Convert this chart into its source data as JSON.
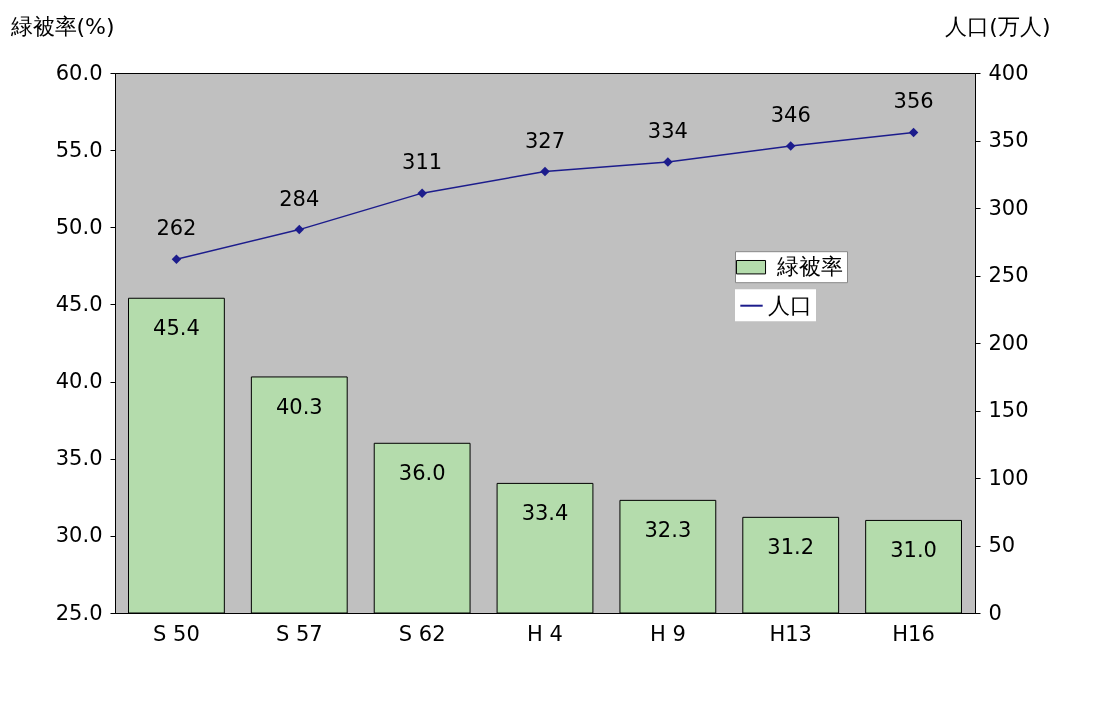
{
  "chart_data": {
    "type": "bar",
    "ylabel": "緑被率(%)",
    "y2label": "人口(万人)",
    "categories": [
      "S 50",
      "S 57",
      "S 62",
      "H 4",
      "H 9",
      "H13",
      "H16"
    ],
    "series": [
      {
        "name": "緑被率",
        "color": "#b4dcac",
        "values": [
          45.4,
          40.3,
          36.0,
          33.4,
          32.3,
          31.2,
          31.0
        ],
        "value_labels": [
          "45.4",
          "40.3",
          "36.0",
          "33.4",
          "32.3",
          "31.2",
          "31.0"
        ]
      },
      {
        "name": "人口",
        "type": "line",
        "axis": "y2",
        "color": "#1c1c8c",
        "marker": "diamond",
        "values": [
          262,
          284,
          311,
          327,
          334,
          346,
          356
        ],
        "value_labels": [
          "262",
          "284",
          "311",
          "327",
          "334",
          "346",
          "356"
        ]
      }
    ],
    "ylim": [
      25,
      60
    ],
    "yticks": [
      {
        "value": 25,
        "label": "25.0"
      },
      {
        "value": 30,
        "label": "30.0"
      },
      {
        "value": 35,
        "label": "35.0"
      },
      {
        "value": 40,
        "label": "40.0"
      },
      {
        "value": 45,
        "label": "45.0"
      },
      {
        "value": 50,
        "label": "50.0"
      },
      {
        "value": 55,
        "label": "55.0"
      },
      {
        "value": 60,
        "label": "60.0"
      }
    ],
    "y2lim": [
      0,
      400
    ],
    "y2ticks": [
      0,
      50,
      100,
      150,
      200,
      250,
      300,
      350,
      400
    ],
    "legend": "right",
    "grid": false
  }
}
